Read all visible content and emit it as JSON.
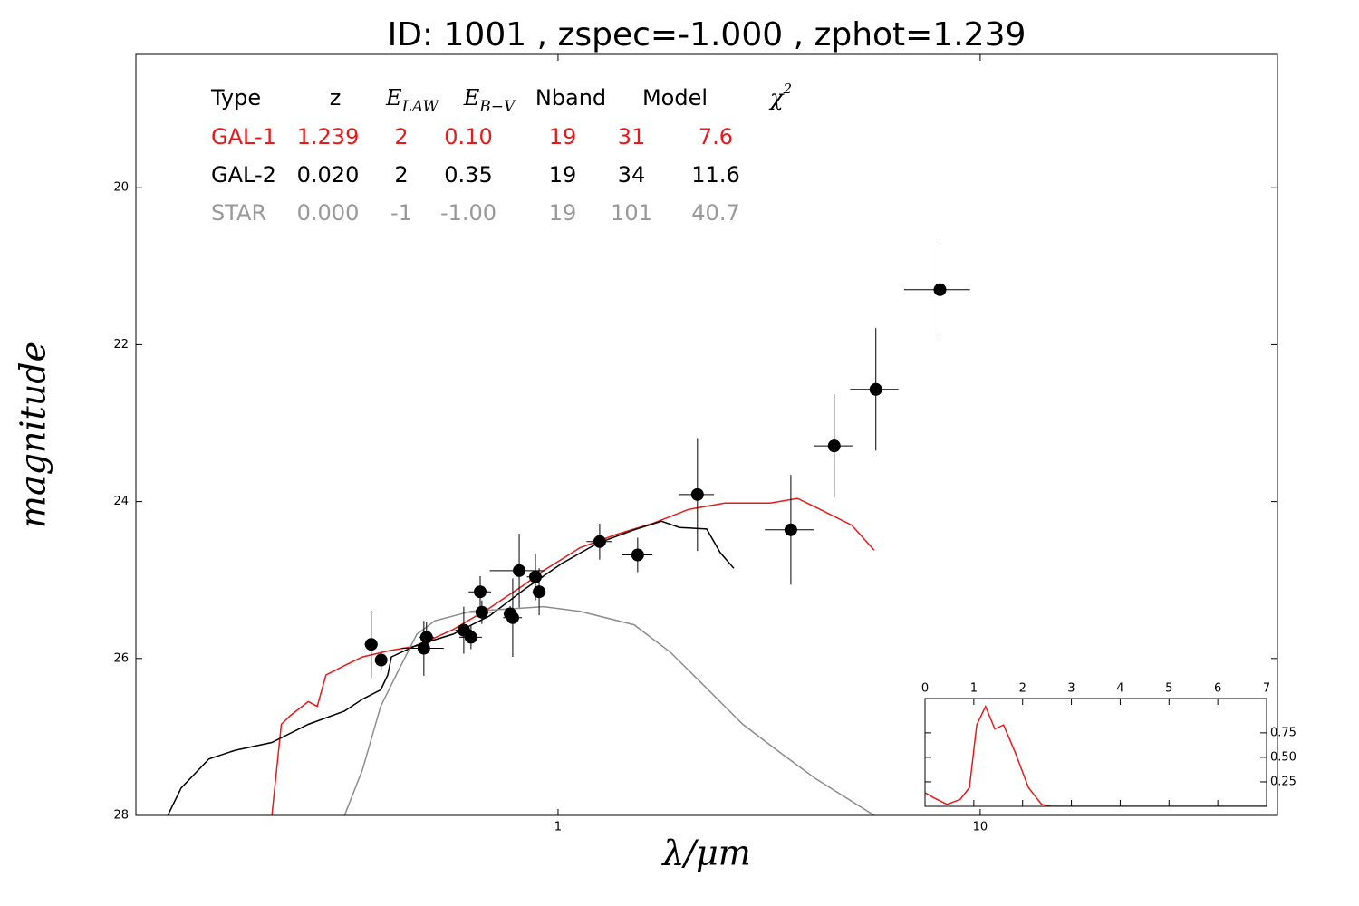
{
  "chart_data": [
    {
      "type": "line",
      "title": "ID:  1001  , zspec=-1.000 , zphot=1.239",
      "xlabel": "λ/μm",
      "ylabel": "magnitude",
      "xscale": "log",
      "xlim": [
        0.1,
        50.6
      ],
      "ylim": [
        28,
        18.3
      ],
      "xticks": [
        1,
        10
      ],
      "yticks": [
        20,
        22,
        24,
        26,
        28
      ],
      "series": [
        {
          "color": "#e41a1c",
          "x": [
            0.21,
            0.221,
            0.232,
            0.256,
            0.269,
            0.282,
            0.297,
            0.312,
            0.344,
            0.399,
            0.463,
            0.564,
            0.687,
            0.837,
            0.924,
            1.126,
            1.372,
            1.671,
            2.037,
            2.483,
            3.18,
            3.69,
            4.07,
            4.96,
            5.61
          ],
          "values": [
            28.0,
            26.84,
            26.73,
            26.55,
            26.61,
            26.21,
            26.15,
            26.09,
            25.98,
            25.9,
            25.84,
            25.63,
            25.36,
            25.05,
            24.88,
            24.59,
            24.42,
            24.28,
            24.1,
            24.02,
            24.02,
            23.96,
            24.07,
            24.3,
            24.62
          ]
        },
        {
          "color": "#000000",
          "x": [
            0.119,
            0.128,
            0.149,
            0.172,
            0.21,
            0.256,
            0.312,
            0.344,
            0.38,
            0.395,
            0.403,
            0.463,
            0.564,
            0.687,
            0.837,
            1.02,
            1.242,
            1.514,
            1.758,
            1.94,
            2.249,
            2.421,
            2.608
          ],
          "values": [
            28.0,
            27.65,
            27.28,
            27.17,
            27.07,
            26.84,
            26.67,
            26.52,
            26.4,
            26.21,
            25.98,
            25.83,
            25.69,
            25.46,
            25.11,
            24.79,
            24.53,
            24.36,
            24.25,
            24.33,
            24.35,
            24.65,
            24.85
          ]
        },
        {
          "color": "#8c8c8c",
          "x": [
            0.312,
            0.344,
            0.38,
            0.419,
            0.463,
            0.511,
            0.622,
            0.758,
            0.924,
            1.126,
            1.514,
            1.845,
            2.249,
            2.74,
            3.34,
            4.07,
            4.96,
            5.61
          ],
          "values": [
            28.0,
            27.42,
            26.61,
            26.15,
            25.69,
            25.52,
            25.4,
            25.37,
            25.34,
            25.4,
            25.57,
            25.92,
            26.38,
            26.84,
            27.19,
            27.53,
            27.82,
            28.0
          ]
        }
      ],
      "points": {
        "color": "#000000",
        "x": [
          0.361,
          0.381,
          0.481,
          0.488,
          0.598,
          0.622,
          0.654,
          0.66,
          0.77,
          0.781,
          0.809,
          0.884,
          0.902,
          1.255,
          1.544,
          2.139,
          3.56,
          4.51,
          5.66,
          8.03
        ],
        "values": [
          25.82,
          26.02,
          25.87,
          25.73,
          25.64,
          25.73,
          25.15,
          25.41,
          25.43,
          25.48,
          24.88,
          24.96,
          25.15,
          24.51,
          24.68,
          23.91,
          24.36,
          23.29,
          22.57,
          21.3
        ],
        "xerr": [
          0.013,
          0.013,
          0.055,
          0.02,
          0.027,
          0.038,
          0.04,
          0.047,
          0.027,
          0.04,
          0.12,
          0.04,
          0.032,
          0.087,
          0.13,
          0.2,
          0.47,
          0.47,
          0.74,
          1.43
        ],
        "yerr": [
          0.43,
          0.12,
          0.35,
          0.2,
          0.3,
          0.15,
          0.2,
          0.15,
          0.1,
          0.5,
          0.47,
          0.3,
          0.3,
          0.23,
          0.22,
          0.72,
          0.7,
          0.66,
          0.78,
          0.64
        ]
      },
      "table": {
        "header": [
          "Type",
          "z",
          {
            "main": "E",
            "sub": "LAW"
          },
          {
            "main": "E",
            "sub": "B−V"
          },
          "Nband",
          "Model",
          {
            "main": "χ",
            "sup": "2"
          }
        ],
        "rows": [
          {
            "color": "#e41a1c",
            "cells": [
              "GAL-1",
              "1.239",
              "2",
              "0.10",
              "19",
              "31",
              "7.6"
            ]
          },
          {
            "color": "#000000",
            "cells": [
              "GAL-2",
              "0.020",
              "2",
              "0.35",
              "19",
              "34",
              "11.6"
            ]
          },
          {
            "color": "#999999",
            "cells": [
              "STAR",
              "0.000",
              "-1",
              "-1.00",
              "19",
              "101",
              "40.7"
            ]
          }
        ]
      }
    },
    {
      "type": "line",
      "xlim": [
        0,
        7
      ],
      "ylim": [
        0,
        1.1
      ],
      "xticks": [
        0,
        1,
        2,
        3,
        4,
        5,
        6,
        7
      ],
      "yticks": [
        {
          "value": 0.25,
          "label": "0.25"
        },
        {
          "value": 0.5,
          "label": "0.50"
        },
        {
          "value": 0.75,
          "label": "0.75"
        }
      ],
      "xtick_side": "top",
      "ytick_side": "right",
      "series": [
        {
          "color": "#e41a1c",
          "x": [
            0,
            0.17,
            0.45,
            0.72,
            0.91,
            1.06,
            1.24,
            1.43,
            1.61,
            1.84,
            2.12,
            2.39,
            2.58,
            7
          ],
          "values": [
            0.14,
            0.09,
            0.02,
            0.07,
            0.19,
            0.83,
            1.02,
            0.79,
            0.83,
            0.56,
            0.19,
            0.02,
            0,
            0
          ]
        }
      ]
    }
  ]
}
